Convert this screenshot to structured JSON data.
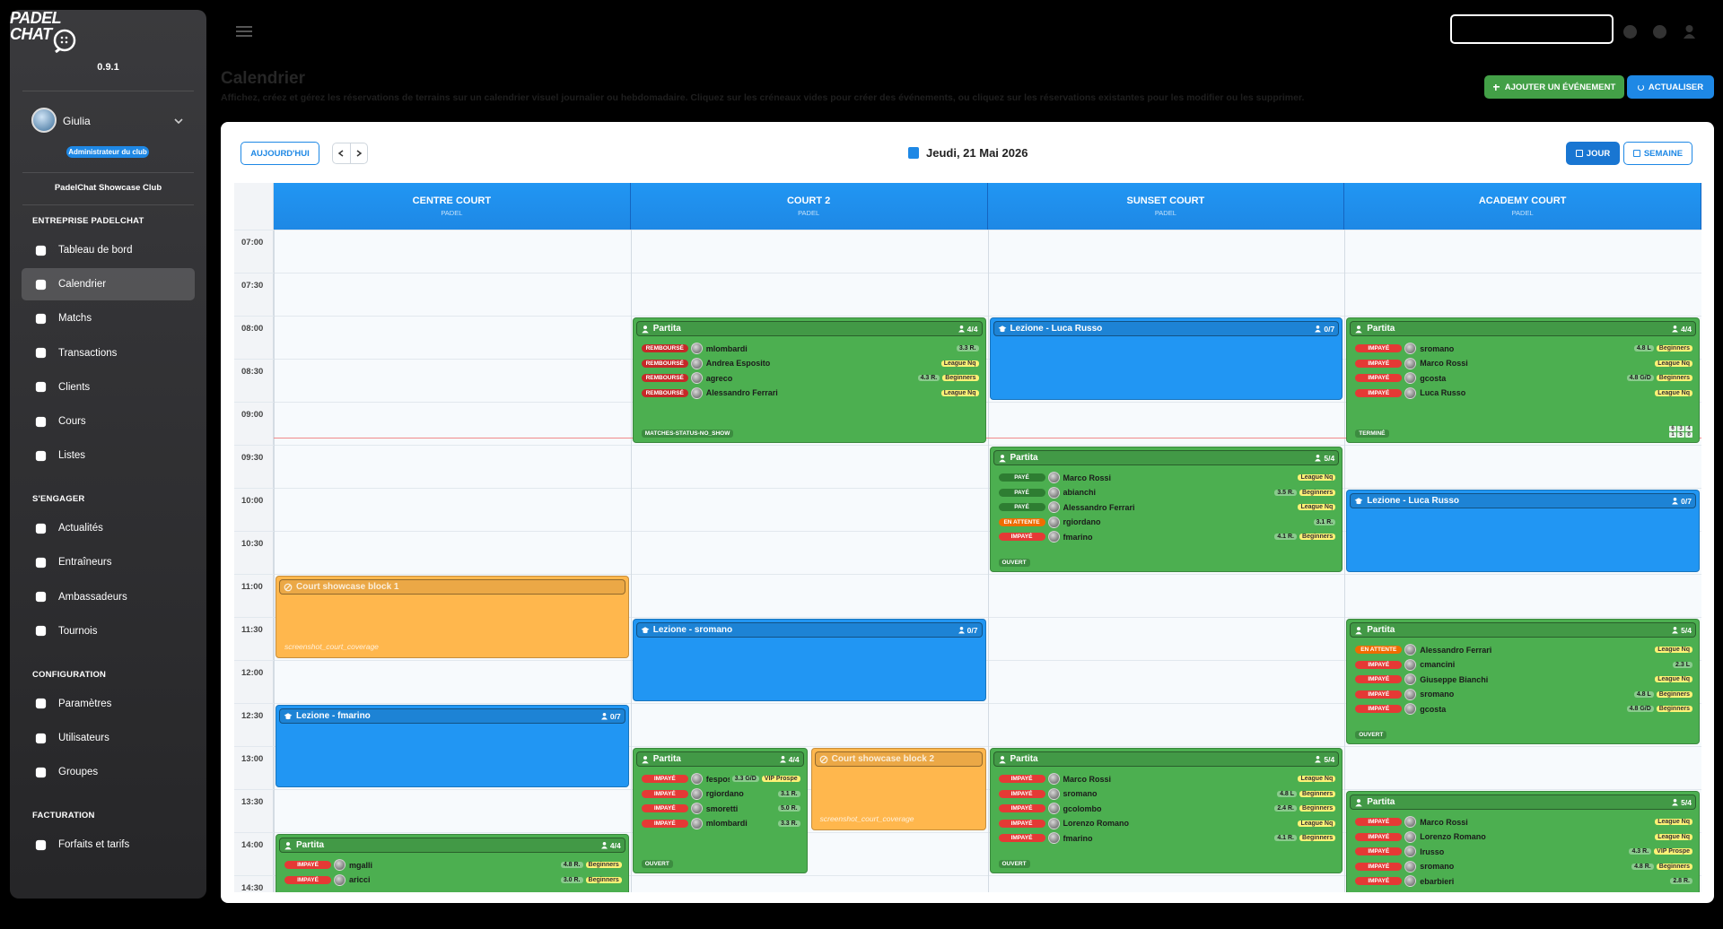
{
  "sidebar": {
    "logo_lines": [
      "PADEL",
      "CHAT"
    ],
    "version": "0.9.1",
    "user": "Giulia",
    "role": "Administrateur du club",
    "club": "PadelChat Showcase Club",
    "sections": [
      {
        "title": "ENTREPRISE PADELCHAT",
        "items": [
          {
            "label": "Tableau de bord"
          },
          {
            "label": "Calendrier",
            "active": true
          },
          {
            "label": "Matchs"
          },
          {
            "label": "Transactions"
          },
          {
            "label": "Clients"
          },
          {
            "label": "Cours"
          },
          {
            "label": "Listes"
          }
        ]
      },
      {
        "title": "S'ENGAGER",
        "items": [
          {
            "label": "Actualités"
          },
          {
            "label": "Entraîneurs"
          },
          {
            "label": "Ambassadeurs"
          },
          {
            "label": "Tournois"
          }
        ]
      },
      {
        "title": "CONFIGURATION",
        "items": [
          {
            "label": "Paramètres"
          },
          {
            "label": "Utilisateurs"
          },
          {
            "label": "Groupes"
          }
        ]
      },
      {
        "title": "FACTURATION",
        "items": [
          {
            "label": "Forfaits et tarifs"
          }
        ]
      }
    ]
  },
  "header": {
    "title": "Calendrier",
    "subtitle": "Affichez, créez et gérez les réservations de terrains sur un calendrier visuel journalier ou hebdomadaire. Cliquez sur les créneaux vides pour créer des événements, ou cliquez sur les réservations existantes pour les modifier ou les supprimer.",
    "add_button": "AJOUTER UN ÉVÉNEMENT",
    "refresh_button": "ACTUALISER"
  },
  "toolbar": {
    "today": "AUJOURD'HUI",
    "date": "Jeudi, 21 Mai 2026",
    "views": [
      {
        "label": "JOUR",
        "active": true
      },
      {
        "label": "SEMAINE"
      }
    ]
  },
  "calendar": {
    "kind_colors": {
      "match": "#4caf50",
      "lesson": "#2196f3",
      "block": "#ffb74d"
    },
    "status_colors": {
      "REMBOURSÉ": "#c62828",
      "IMPAYÉ": "#e53935",
      "PAYÉ": "#2e7d32",
      "EN ATTENTE": "#ef6c00"
    },
    "times": [
      "07:00",
      "07:30",
      "08:00",
      "08:30",
      "09:00",
      "09:30",
      "10:00",
      "10:30",
      "11:00",
      "11:30",
      "12:00",
      "12:30",
      "13:00",
      "13:30",
      "14:00",
      "14:30"
    ],
    "courts": [
      {
        "name": "CENTRE COURT",
        "sport": "PADEL",
        "events": [
          {
            "kind": "block",
            "title": "Court showcase block 1",
            "note": "screenshot_court_coverage"
          },
          {
            "kind": "lesson",
            "title": "Lezione - fmarino",
            "count": "0/7"
          },
          {
            "kind": "match",
            "title": "Partita",
            "count": "4/4",
            "players": [
              {
                "status": "IMPAYÉ",
                "name": "mgalli",
                "level": "4.8 R.",
                "tag": "Beginners"
              },
              {
                "status": "IMPAYÉ",
                "name": "aricci",
                "level": "3.0 R.",
                "tag": "Beginners"
              }
            ]
          }
        ]
      },
      {
        "name": "COURT 2",
        "sport": "PADEL",
        "events": [
          {
            "kind": "match",
            "title": "Partita",
            "count": "4/4",
            "players": [
              {
                "status": "REMBOURSÉ",
                "name": "mlombardi",
                "level": "3.3 R."
              },
              {
                "status": "REMBOURSÉ",
                "name": "Andrea Esposito",
                "tag": "League Nq"
              },
              {
                "status": "REMBOURSÉ",
                "name": "agreco",
                "level": "4.3 R.",
                "tag": "Beginners"
              },
              {
                "status": "REMBOURSÉ",
                "name": "Alessandro Ferrari",
                "tag": "League Nq"
              }
            ],
            "footer": "MATCHES-STATUS-NO_SHOW"
          },
          {
            "kind": "lesson",
            "title": "Lezione - sromano",
            "count": "0/7"
          },
          {
            "kind": "match",
            "title": "Partita",
            "count": "4/4",
            "players": [
              {
                "status": "IMPAYÉ",
                "name": "fesposito",
                "level": "3.3 G/D",
                "tag": "VIP Prospe"
              },
              {
                "status": "IMPAYÉ",
                "name": "rgiordano",
                "level": "3.1 R."
              },
              {
                "status": "IMPAYÉ",
                "name": "smoretti",
                "level": "5.0 R."
              },
              {
                "status": "IMPAYÉ",
                "name": "mlombardi",
                "level": "3.3 R."
              }
            ],
            "footer": "OUVERT"
          },
          {
            "kind": "block",
            "title": "Court showcase block 2",
            "note": "screenshot_court_coverage"
          }
        ]
      },
      {
        "name": "SUNSET COURT",
        "sport": "PADEL",
        "events": [
          {
            "kind": "lesson",
            "title": "Lezione - Luca Russo",
            "count": "0/7"
          },
          {
            "kind": "match",
            "title": "Partita",
            "count": "5/4",
            "players": [
              {
                "status": "PAYÉ",
                "name": "Marco Rossi",
                "tag": "League Nq"
              },
              {
                "status": "PAYÉ",
                "name": "abianchi",
                "level": "3.5 R.",
                "tag": "Beginners"
              },
              {
                "status": "PAYÉ",
                "name": "Alessandro Ferrari",
                "tag": "League Nq"
              },
              {
                "status": "EN ATTENTE",
                "name": "rgiordano",
                "level": "3.1 R."
              },
              {
                "status": "IMPAYÉ",
                "name": "fmarino",
                "level": "4.1 R.",
                "tag": "Beginners"
              }
            ],
            "footer": "OUVERT"
          },
          {
            "kind": "match",
            "title": "Partita",
            "count": "5/4",
            "players": [
              {
                "status": "IMPAYÉ",
                "name": "Marco Rossi",
                "tag": "League Nq"
              },
              {
                "status": "IMPAYÉ",
                "name": "sromano",
                "level": "4.8 L",
                "tag": "Beginners"
              },
              {
                "status": "IMPAYÉ",
                "name": "gcolombo",
                "level": "2.4 R.",
                "tag": "Beginners"
              },
              {
                "status": "IMPAYÉ",
                "name": "Lorenzo Romano",
                "tag": "League Nq"
              },
              {
                "status": "IMPAYÉ",
                "name": "fmarino",
                "level": "4.1 R.",
                "tag": "Beginners"
              }
            ],
            "footer": "OUVERT"
          }
        ]
      },
      {
        "name": "ACADEMY COURT",
        "sport": "PADEL",
        "events": [
          {
            "kind": "match",
            "title": "Partita",
            "count": "4/4",
            "players": [
              {
                "status": "IMPAYÉ",
                "name": "sromano",
                "level": "4.8 L",
                "tag": "Beginners"
              },
              {
                "status": "IMPAYÉ",
                "name": "Marco Rossi",
                "tag": "League Nq"
              },
              {
                "status": "IMPAYÉ",
                "name": "gcosta",
                "level": "4.8 G/D",
                "tag": "Beginners"
              },
              {
                "status": "IMPAYÉ",
                "name": "Luca Russo",
                "tag": "League Nq"
              }
            ],
            "footer": "TERMINÉ",
            "score": [
              6,
              3,
              4,
              1,
              5,
              0
            ]
          },
          {
            "kind": "lesson",
            "title": "Lezione - Luca Russo",
            "count": "0/7"
          },
          {
            "kind": "match",
            "title": "Partita",
            "count": "5/4",
            "players": [
              {
                "status": "EN ATTENTE",
                "name": "Alessandro Ferrari",
                "tag": "League Nq"
              },
              {
                "status": "IMPAYÉ",
                "name": "cmancini",
                "level": "2.3 L"
              },
              {
                "status": "IMPAYÉ",
                "name": "Giuseppe Bianchi",
                "tag": "League Nq"
              },
              {
                "status": "IMPAYÉ",
                "name": "sromano",
                "level": "4.8 L",
                "tag": "Beginners"
              },
              {
                "status": "IMPAYÉ",
                "name": "gcosta",
                "level": "4.8 G/D",
                "tag": "Beginners"
              }
            ],
            "footer": "OUVERT"
          },
          {
            "kind": "match",
            "title": "Partita",
            "count": "5/4",
            "players": [
              {
                "status": "IMPAYÉ",
                "name": "Marco Rossi",
                "tag": "League Nq"
              },
              {
                "status": "IMPAYÉ",
                "name": "Lorenzo Romano",
                "tag": "League Nq"
              },
              {
                "status": "IMPAYÉ",
                "name": "lrusso",
                "level": "4.3 R.",
                "tag": "VIP Prospe"
              },
              {
                "status": "IMPAYÉ",
                "name": "sromano",
                "level": "4.8 R.",
                "tag": "Beginners"
              },
              {
                "status": "IMPAYÉ",
                "name": "ebarbieri",
                "level": "2.8 R."
              }
            ]
          }
        ]
      }
    ]
  }
}
